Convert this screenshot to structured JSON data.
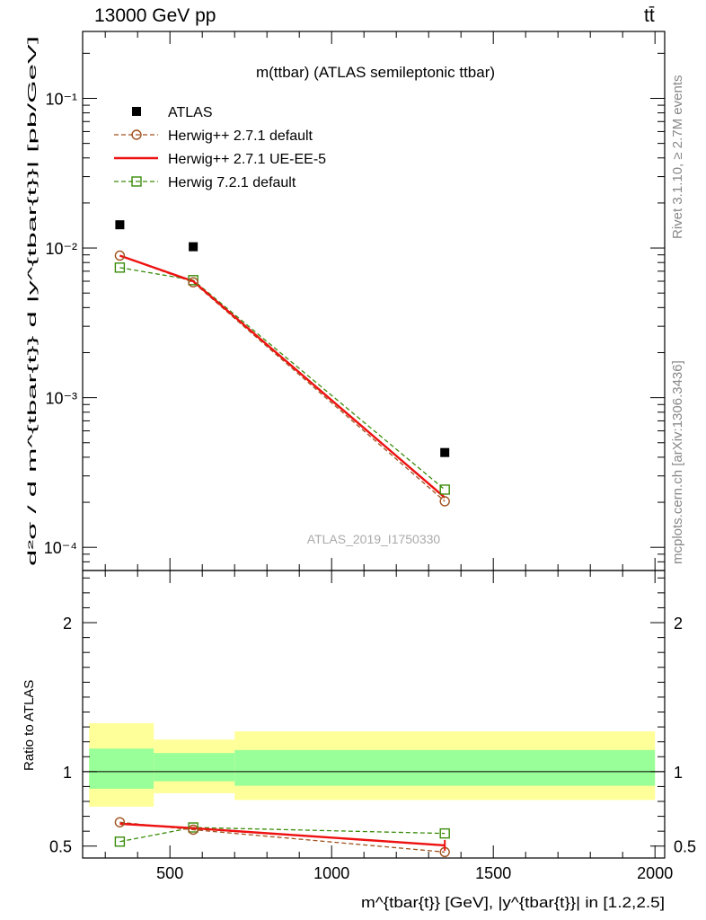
{
  "header": {
    "left": "13000 GeV pp",
    "right": "tt̄"
  },
  "side_labels": {
    "top": "Rivet 3.1.10, ≥ 2.7M events",
    "bottom": "mcplots.cern.ch [arXiv:1306.3436]"
  },
  "colors": {
    "data": "#000000",
    "herwigpp_default": "#a0521e",
    "herwigpp_ueee5": "#ee1111",
    "herwig7_default": "#3a8c0a",
    "band_inner": "#99ff99",
    "band_outer": "#ffff99"
  },
  "chart_data": [
    {
      "type": "line",
      "title": "m(ttbar) (ATLAS semileptonic ttbar)",
      "watermark": "ATLAS_2019_I1750330",
      "ylabel": "d²σ / d m^{tbar{t}} d |y^{tbar{t}}| [pb/GeV]",
      "yscale": "log",
      "ylim": [
        7e-05,
        0.28
      ],
      "xlim": [
        230,
        2030
      ],
      "legend_placement": "top-left",
      "y_tick_labels": [
        "10⁻⁴",
        "10⁻³",
        "10⁻²",
        "10⁻¹"
      ],
      "x": [
        345,
        572,
        1350
      ],
      "series": [
        {
          "name": "ATLAS",
          "values": [
            0.0143,
            0.0102,
            0.00043
          ],
          "style": "markers"
        },
        {
          "name": "Herwig++ 2.7.1 default",
          "values": [
            0.0089,
            0.0059,
            0.000203
          ],
          "style": "dashed-circle"
        },
        {
          "name": "Herwig++ 2.7.1 UE-EE-5",
          "values": [
            0.0089,
            0.006,
            0.000215
          ],
          "style": "solid"
        },
        {
          "name": "Herwig 7.2.1 default",
          "values": [
            0.0074,
            0.0061,
            0.000243
          ],
          "style": "dashed-square"
        }
      ]
    },
    {
      "type": "line",
      "ylabel": "Ratio to ATLAS",
      "xlabel": "m^{tbar{t}} [GeV], |y^{tbar{t}}| in [1.2,2.5]",
      "ylim": [
        0.42,
        2.35
      ],
      "xlim": [
        230,
        2030
      ],
      "y_tick_labels": [
        "0.5",
        "1",
        "2"
      ],
      "x_tick_labels": [
        "500",
        "1000",
        "1500",
        "2000"
      ],
      "bins": [
        [
          250,
          450
        ],
        [
          450,
          700
        ],
        [
          700,
          2000
        ]
      ],
      "band_inner": [
        [
          0.885,
          1.155
        ],
        [
          0.935,
          1.125
        ],
        [
          0.905,
          1.145
        ]
      ],
      "band_outer": [
        [
          0.765,
          1.325
        ],
        [
          0.855,
          1.215
        ],
        [
          0.81,
          1.27
        ]
      ],
      "x": [
        345,
        572,
        1350
      ],
      "series": [
        {
          "name": "Herwig++ 2.7.1 default",
          "values": [
            0.66,
            0.61,
            0.46
          ]
        },
        {
          "name": "Herwig++ 2.7.1 UE-EE-5",
          "values": [
            0.65,
            0.62,
            0.505
          ]
        },
        {
          "name": "Herwig 7.2.1 default",
          "values": [
            0.53,
            0.625,
            0.585
          ]
        }
      ]
    }
  ]
}
